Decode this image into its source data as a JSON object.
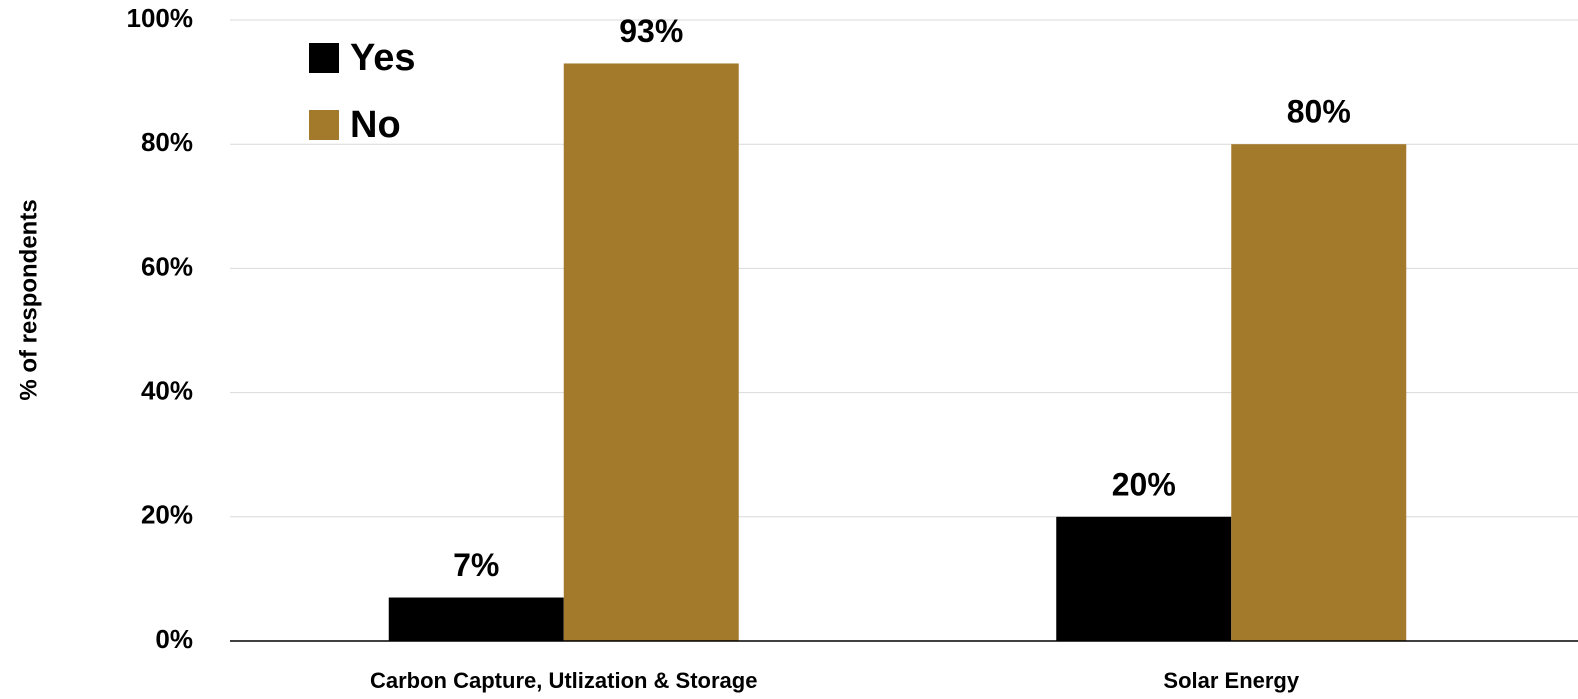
{
  "chart_data": {
    "type": "bar",
    "y_label": "% of respondents",
    "categories": [
      "Carbon Capture, Utlization & Storage",
      "Solar Energy"
    ],
    "series": [
      {
        "name": "Yes",
        "color": "#000000",
        "values": [
          7,
          20
        ],
        "value_labels": [
          "7%",
          "20%"
        ]
      },
      {
        "name": "No",
        "color": "#a3792c",
        "values": [
          93,
          80
        ],
        "value_labels": [
          "93%",
          "80%"
        ]
      }
    ],
    "ylim": [
      0,
      100
    ],
    "yticks": [
      {
        "value": 0,
        "label": "0%"
      },
      {
        "value": 20,
        "label": "20%"
      },
      {
        "value": 40,
        "label": "40%"
      },
      {
        "value": 60,
        "label": "60%"
      },
      {
        "value": 80,
        "label": "80%"
      },
      {
        "value": 100,
        "label": "100%"
      }
    ],
    "grid": true,
    "legend": "top-left"
  }
}
